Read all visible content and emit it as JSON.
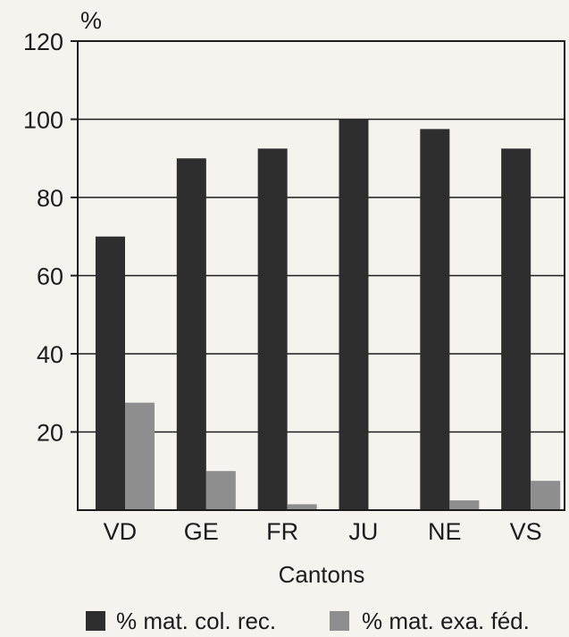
{
  "chart_data": {
    "type": "bar",
    "categories": [
      "VD",
      "GE",
      "FR",
      "JU",
      "NE",
      "VS"
    ],
    "series": [
      {
        "name": "% mat. col. rec.",
        "values": [
          70,
          90,
          92.5,
          100,
          97.5,
          92.5
        ],
        "color": "#2e2e2e"
      },
      {
        "name": "% mat. exa. féd.",
        "values": [
          27.5,
          10,
          1.5,
          0,
          2.5,
          7.5
        ],
        "color": "#8e8e8e"
      }
    ],
    "title": "",
    "xlabel": "Cantons",
    "ylabel": "%",
    "ylim": [
      0,
      120
    ],
    "yticks": [
      "20",
      "40",
      "60",
      "80",
      "100",
      "120"
    ],
    "grid": true,
    "legend_position": "bottom"
  }
}
